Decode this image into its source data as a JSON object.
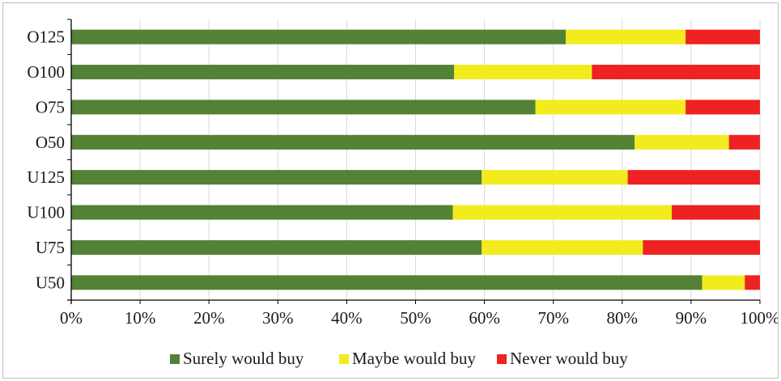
{
  "chart_data": {
    "type": "bar",
    "orientation": "horizontal",
    "stacked": true,
    "percent_stacked": true,
    "title": "",
    "xlabel": "",
    "ylabel": "",
    "categories": [
      "O125",
      "O100",
      "O75",
      "O50",
      "U125",
      "U100",
      "U75",
      "U50"
    ],
    "series": [
      {
        "name": "Surely would buy",
        "color": "#538135",
        "values": [
          71.8,
          55.6,
          67.4,
          81.8,
          59.6,
          55.4,
          59.6,
          91.6
        ]
      },
      {
        "name": "Maybe would buy",
        "color": "#f2ec1e",
        "values": [
          17.4,
          20.0,
          21.8,
          13.7,
          21.2,
          31.8,
          23.4,
          6.2
        ]
      },
      {
        "name": "Never would buy",
        "color": "#ee2222",
        "values": [
          10.8,
          24.4,
          10.8,
          4.5,
          19.2,
          12.8,
          17.0,
          2.2
        ]
      }
    ],
    "xlim": [
      0,
      100
    ],
    "x_ticks": [
      "0%",
      "10%",
      "20%",
      "30%",
      "40%",
      "50%",
      "60%",
      "70%",
      "80%",
      "90%",
      "100%"
    ],
    "grid": true,
    "legend_position": "bottom"
  }
}
